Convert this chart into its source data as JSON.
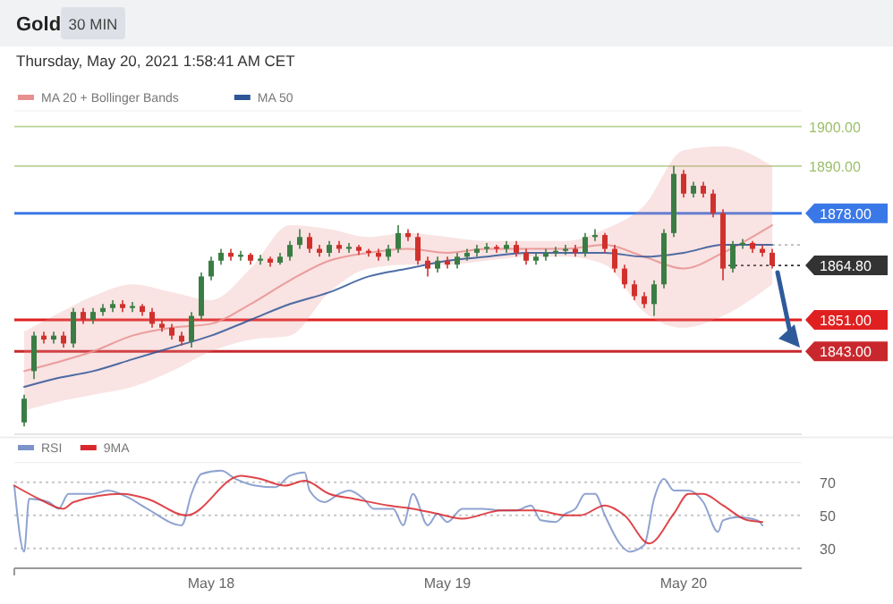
{
  "chart_data": [
    {
      "type": "candlestick",
      "title": "Gold",
      "subtitle": "Thursday, May 20, 2021 1:58:41 AM CET",
      "annotations": [
        "30 MIN"
      ],
      "x": [
        "2021-05-17T05:00",
        "2021-05-17T06:00",
        "2021-05-17T07:00",
        "2021-05-17T08:00",
        "2021-05-17T09:00",
        "2021-05-17T10:00",
        "2021-05-17T11:00",
        "2021-05-17T12:00",
        "2021-05-17T13:00",
        "2021-05-17T14:00",
        "2021-05-17T15:00",
        "2021-05-17T16:00",
        "2021-05-17T17:00",
        "2021-05-17T18:00",
        "2021-05-17T19:00",
        "2021-05-17T20:00",
        "2021-05-17T21:00",
        "2021-05-17T22:00",
        "2021-05-17T23:00",
        "2021-05-18T00:00",
        "2021-05-18T01:00",
        "2021-05-18T02:00",
        "2021-05-18T03:00",
        "2021-05-18T04:00",
        "2021-05-18T05:00",
        "2021-05-18T06:00",
        "2021-05-18T07:00",
        "2021-05-18T08:00",
        "2021-05-18T09:00",
        "2021-05-18T10:00",
        "2021-05-18T11:00",
        "2021-05-18T12:00",
        "2021-05-18T13:00",
        "2021-05-18T14:00",
        "2021-05-18T15:00",
        "2021-05-18T16:00",
        "2021-05-18T17:00",
        "2021-05-18T18:00",
        "2021-05-18T19:00",
        "2021-05-18T20:00",
        "2021-05-18T21:00",
        "2021-05-18T22:00",
        "2021-05-18T23:00",
        "2021-05-19T00:00",
        "2021-05-19T01:00",
        "2021-05-19T02:00",
        "2021-05-19T03:00",
        "2021-05-19T04:00",
        "2021-05-19T05:00",
        "2021-05-19T06:00",
        "2021-05-19T07:00",
        "2021-05-19T08:00",
        "2021-05-19T09:00",
        "2021-05-19T10:00",
        "2021-05-19T11:00",
        "2021-05-19T12:00",
        "2021-05-19T13:00",
        "2021-05-19T14:00",
        "2021-05-19T15:00",
        "2021-05-19T16:00",
        "2021-05-19T17:00",
        "2021-05-19T18:00",
        "2021-05-19T19:00",
        "2021-05-19T20:00",
        "2021-05-19T21:00",
        "2021-05-19T22:00",
        "2021-05-19T23:00",
        "2021-05-20T00:00",
        "2021-05-20T01:00",
        "2021-05-20T02:00",
        "2021-05-20T03:00",
        "2021-05-20T04:00",
        "2021-05-20T05:00",
        "2021-05-20T06:00",
        "2021-05-20T07:00",
        "2021-05-20T08:00",
        "2021-05-20T09:00"
      ],
      "ohlc": [
        [
          1825,
          1832,
          1824,
          1831
        ],
        [
          1838,
          1848,
          1836,
          1847
        ],
        [
          1847,
          1848,
          1845,
          1846
        ],
        [
          1846,
          1848,
          1845,
          1847
        ],
        [
          1847,
          1848,
          1844,
          1845
        ],
        [
          1845,
          1854,
          1844,
          1853
        ],
        [
          1853,
          1854,
          1850,
          1851
        ],
        [
          1851,
          1854,
          1850,
          1853
        ],
        [
          1853,
          1855,
          1852,
          1854
        ],
        [
          1854,
          1856,
          1853,
          1855
        ],
        [
          1855,
          1856,
          1853,
          1854
        ],
        [
          1854,
          1855.5,
          1853,
          1854.5
        ],
        [
          1854.5,
          1855,
          1852,
          1853
        ],
        [
          1853,
          1854,
          1849,
          1850
        ],
        [
          1850,
          1851,
          1848,
          1849
        ],
        [
          1849,
          1850,
          1846,
          1847
        ],
        [
          1847,
          1848,
          1844.5,
          1845.5
        ],
        [
          1845.5,
          1853,
          1844,
          1852
        ],
        [
          1852,
          1863,
          1851,
          1862
        ],
        [
          1862,
          1867,
          1861,
          1866
        ],
        [
          1866,
          1869,
          1865,
          1868
        ],
        [
          1868,
          1869,
          1866,
          1867
        ],
        [
          1867,
          1868.5,
          1866,
          1867.5
        ],
        [
          1867.5,
          1868,
          1865,
          1866
        ],
        [
          1866,
          1867.5,
          1865,
          1866.5
        ],
        [
          1866.5,
          1867,
          1864.5,
          1865.5
        ],
        [
          1865.5,
          1868,
          1865,
          1867
        ],
        [
          1867,
          1871,
          1866,
          1870
        ],
        [
          1870,
          1874,
          1869,
          1872
        ],
        [
          1872,
          1873,
          1868,
          1869
        ],
        [
          1869,
          1870,
          1867,
          1868
        ],
        [
          1868,
          1871,
          1867,
          1870
        ],
        [
          1870,
          1871,
          1868,
          1869
        ],
        [
          1869,
          1870.5,
          1868,
          1869.5
        ],
        [
          1869.5,
          1870,
          1867.5,
          1868.5
        ],
        [
          1868.5,
          1869,
          1867,
          1868
        ],
        [
          1868,
          1869,
          1866,
          1867
        ],
        [
          1867,
          1870,
          1866,
          1869
        ],
        [
          1869,
          1875,
          1868,
          1873
        ],
        [
          1873,
          1874,
          1871,
          1872
        ],
        [
          1872,
          1873,
          1865,
          1866
        ],
        [
          1866,
          1867,
          1862,
          1864
        ],
        [
          1864,
          1867,
          1863,
          1866
        ],
        [
          1866,
          1867,
          1864,
          1865
        ],
        [
          1865,
          1868,
          1864,
          1867
        ],
        [
          1867,
          1869,
          1866,
          1868
        ],
        [
          1868,
          1870,
          1867,
          1869
        ],
        [
          1869,
          1870.5,
          1868,
          1869.5
        ],
        [
          1869.5,
          1870,
          1868,
          1869
        ],
        [
          1869,
          1871,
          1868,
          1870
        ],
        [
          1870,
          1871,
          1867,
          1868
        ],
        [
          1868,
          1869,
          1865,
          1866
        ],
        [
          1866,
          1868,
          1865,
          1867
        ],
        [
          1867,
          1869,
          1866,
          1868
        ],
        [
          1868,
          1869.5,
          1867,
          1868.5
        ],
        [
          1868.5,
          1870,
          1867.5,
          1869
        ],
        [
          1869,
          1870,
          1867,
          1868
        ],
        [
          1868,
          1873,
          1867,
          1872
        ],
        [
          1872,
          1874,
          1871,
          1872.5
        ],
        [
          1872.5,
          1873,
          1868,
          1869
        ],
        [
          1869,
          1870,
          1863,
          1864
        ],
        [
          1864,
          1865,
          1859,
          1860
        ],
        [
          1860,
          1861,
          1856,
          1857
        ],
        [
          1857,
          1858,
          1854,
          1855
        ],
        [
          1855,
          1861,
          1852,
          1860
        ],
        [
          1860,
          1874,
          1859,
          1873
        ],
        [
          1873,
          1890,
          1872,
          1888
        ],
        [
          1888,
          1889,
          1882,
          1883
        ],
        [
          1883,
          1886,
          1882,
          1885
        ],
        [
          1885,
          1886,
          1882,
          1883
        ],
        [
          1883,
          1884,
          1877,
          1878
        ],
        [
          1878,
          1879,
          1861,
          1864
        ],
        [
          1864,
          1871,
          1863,
          1870
        ],
        [
          1870,
          1871.5,
          1869,
          1870.5
        ],
        [
          1870.5,
          1871,
          1868,
          1869
        ],
        [
          1869,
          1870,
          1867,
          1868
        ],
        [
          1868,
          1869,
          1864,
          1864.8
        ]
      ],
      "series": [
        {
          "name": "MA 20 + Bollinger Bands",
          "type": "line",
          "color": "#e8908f",
          "x": [
            "2021-05-17T05:00",
            "2021-05-17T08:00",
            "2021-05-17T12:00",
            "2021-05-17T16:00",
            "2021-05-17T20:00",
            "2021-05-18T00:00",
            "2021-05-18T04:00",
            "2021-05-18T08:00",
            "2021-05-18T12:00",
            "2021-05-18T16:00",
            "2021-05-18T20:00",
            "2021-05-19T00:00",
            "2021-05-19T04:00",
            "2021-05-19T08:00",
            "2021-05-19T12:00",
            "2021-05-19T16:00",
            "2021-05-19T20:00",
            "2021-05-20T00:00",
            "2021-05-20T04:00",
            "2021-05-20T09:00"
          ],
          "values": [
            1838,
            1840,
            1843,
            1847,
            1849,
            1850,
            1855,
            1861,
            1866,
            1868,
            1869,
            1868,
            1869,
            1869,
            1869,
            1870,
            1867,
            1864,
            1868,
            1875
          ],
          "lower": [
            1828,
            1830,
            1832,
            1834,
            1838,
            1843,
            1846,
            1847,
            1858,
            1864,
            1865,
            1865,
            1866,
            1867,
            1867,
            1865,
            1853,
            1849,
            1852,
            1860
          ],
          "upper": [
            1848,
            1852,
            1857,
            1860,
            1858,
            1856,
            1864,
            1875,
            1874,
            1872,
            1873,
            1872,
            1871,
            1871,
            1871,
            1874,
            1880,
            1894,
            1895,
            1890
          ]
        },
        {
          "name": "MA 50",
          "type": "line",
          "color": "#2f5597",
          "x": [
            "2021-05-17T05:00",
            "2021-05-17T08:00",
            "2021-05-17T12:00",
            "2021-05-17T16:00",
            "2021-05-17T20:00",
            "2021-05-18T00:00",
            "2021-05-18T04:00",
            "2021-05-18T08:00",
            "2021-05-18T12:00",
            "2021-05-18T16:00",
            "2021-05-18T20:00",
            "2021-05-19T00:00",
            "2021-05-19T04:00",
            "2021-05-19T08:00",
            "2021-05-19T12:00",
            "2021-05-19T16:00",
            "2021-05-19T20:00",
            "2021-05-20T00:00",
            "2021-05-20T04:00",
            "2021-05-20T09:00"
          ],
          "values": [
            1834,
            1836,
            1838,
            1841,
            1844,
            1847,
            1851,
            1855,
            1858,
            1862,
            1864,
            1866,
            1867,
            1868,
            1868,
            1868,
            1867,
            1868,
            1870,
            1870
          ]
        }
      ],
      "ref_lines": [
        {
          "axis": "y",
          "value": 1900,
          "label": "1900.00",
          "color": "#9cbf6a"
        },
        {
          "axis": "y",
          "value": 1890,
          "label": "1890.00",
          "color": "#9cbf6a"
        },
        {
          "axis": "y",
          "value": 1878,
          "label": "1878.00",
          "color": "#3b78e7"
        },
        {
          "axis": "y",
          "value": 1870,
          "color": "#9a9a9a",
          "line_style": "dotted"
        },
        {
          "axis": "y",
          "value": 1864.8,
          "label": "1864.80",
          "color": "#333333",
          "line_style": "dotted"
        },
        {
          "axis": "y",
          "value": 1851,
          "label": "1851.00",
          "color": "#e02020"
        },
        {
          "axis": "y",
          "value": 1843,
          "label": "1843.00",
          "color": "#c8282d"
        }
      ],
      "xlim": [
        "2021-05-17T04:00",
        "2021-05-20T12:00"
      ],
      "ylim": [
        1822,
        1904
      ],
      "legend": "top left"
    },
    {
      "type": "line",
      "series": [
        {
          "name": "RSI",
          "color": "#7b93c9",
          "x": [
            "2021-05-17T04:00",
            "2021-05-17T05:00",
            "2021-05-17T05:30",
            "2021-05-17T07:30",
            "2021-05-17T08:30",
            "2021-05-17T09:30",
            "2021-05-17T12:00",
            "2021-05-17T13:30",
            "2021-05-17T15:30",
            "2021-05-17T17:30",
            "2021-05-17T21:00",
            "2021-05-17T22:00",
            "2021-05-17T23:00",
            "2021-05-18T01:00",
            "2021-05-18T02:30",
            "2021-05-18T04:30",
            "2021-05-18T06:30",
            "2021-05-18T08:00",
            "2021-05-18T09:30",
            "2021-05-18T10:00",
            "2021-05-18T11:30",
            "2021-05-18T13:00",
            "2021-05-18T14:00",
            "2021-05-18T15:30",
            "2021-05-18T16:30",
            "2021-05-18T18:30",
            "2021-05-18T19:30",
            "2021-05-18T20:30",
            "2021-05-18T22:00",
            "2021-05-18T23:00",
            "2021-05-19T00:00",
            "2021-05-19T01:30",
            "2021-05-19T03:30",
            "2021-05-19T05:30",
            "2021-05-19T07:00",
            "2021-05-19T08:30",
            "2021-05-19T09:30",
            "2021-05-19T11:00",
            "2021-05-19T12:00",
            "2021-05-19T13:00",
            "2021-05-19T14:00",
            "2021-05-19T15:00",
            "2021-05-19T16:00",
            "2021-05-19T17:30",
            "2021-05-19T18:30",
            "2021-05-19T20:00",
            "2021-05-19T21:00",
            "2021-05-19T22:00",
            "2021-05-19T23:00",
            "2021-05-20T00:30",
            "2021-05-20T02:00",
            "2021-05-20T03:30",
            "2021-05-20T04:00",
            "2021-05-20T05:30",
            "2021-05-20T07:30",
            "2021-05-20T08:00"
          ],
          "values": [
            68,
            28,
            60,
            58,
            54,
            63,
            63,
            65,
            61,
            54,
            44,
            63,
            75,
            77,
            72,
            68,
            67,
            74,
            76,
            65,
            58,
            63,
            65,
            60,
            54,
            54,
            44,
            63,
            44,
            51,
            46,
            54,
            54,
            53,
            53,
            56,
            47,
            46,
            51,
            54,
            63,
            63,
            50,
            33,
            28,
            32,
            60,
            72,
            65,
            65,
            58,
            40,
            47,
            49,
            47,
            44
          ]
        },
        {
          "name": "9MA",
          "color": "#d9262c",
          "x": [
            "2021-05-17T04:00",
            "2021-05-17T06:30",
            "2021-05-17T09:00",
            "2021-05-17T10:00",
            "2021-05-17T15:00",
            "2021-05-17T17:30",
            "2021-05-17T21:30",
            "2021-05-18T03:00",
            "2021-05-18T05:00",
            "2021-05-18T07:30",
            "2021-05-18T09:30",
            "2021-05-18T12:00",
            "2021-05-18T14:30",
            "2021-05-18T18:00",
            "2021-05-18T20:30",
            "2021-05-18T23:00",
            "2021-05-19T01:30",
            "2021-05-19T05:30",
            "2021-05-19T09:00",
            "2021-05-19T12:00",
            "2021-05-19T13:30",
            "2021-05-19T16:00",
            "2021-05-19T18:00",
            "2021-05-19T20:30",
            "2021-05-19T23:00",
            "2021-05-20T00:30",
            "2021-05-20T02:00",
            "2021-05-20T04:00",
            "2021-05-20T06:30",
            "2021-05-20T08:00"
          ],
          "values": [
            68,
            60,
            54,
            58,
            63,
            60,
            50,
            74,
            72,
            68,
            71,
            63,
            60,
            56,
            54,
            51,
            48,
            53,
            53,
            50,
            50,
            56,
            50,
            33,
            51,
            63,
            63,
            56,
            47,
            46
          ]
        }
      ],
      "xlim": [
        "2021-05-17T04:00",
        "2021-05-20T12:00"
      ],
      "xticks": [
        {
          "value": "2021-05-18",
          "label": "May 18"
        },
        {
          "value": "2021-05-19",
          "label": "May 19"
        },
        {
          "value": "2021-05-20",
          "label": "May 20"
        }
      ],
      "ylim": [
        18,
        82
      ],
      "yticks": [
        30,
        50,
        70
      ],
      "grid": "y",
      "legend": "top left"
    }
  ]
}
